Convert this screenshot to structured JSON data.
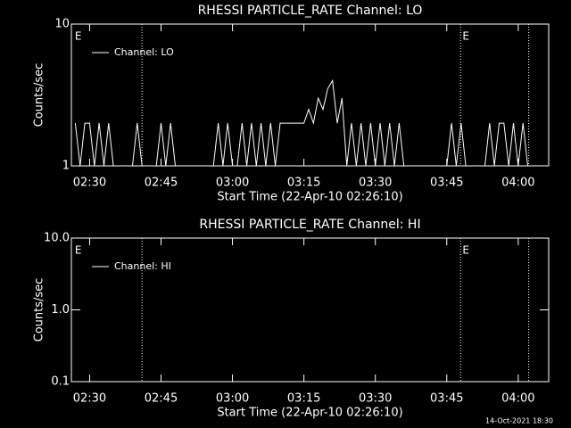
{
  "chart_data": [
    {
      "type": "line",
      "title": "RHESSI PARTICLE_RATE Channel: LO",
      "xlabel": "Start Time (22-Apr-10 02:26:10)",
      "ylabel": "Counts/sec",
      "ylog": true,
      "ylim": [
        1,
        10
      ],
      "yticks": [
        1,
        10
      ],
      "xlim": [
        146.17,
        246.4
      ],
      "xticks": [
        {
          "value": 150,
          "label": "02:30"
        },
        {
          "value": 165,
          "label": "02:45"
        },
        {
          "value": 180,
          "label": "03:00"
        },
        {
          "value": 195,
          "label": "03:15"
        },
        {
          "value": 210,
          "label": "03:30"
        },
        {
          "value": 225,
          "label": "03:45"
        },
        {
          "value": 240,
          "label": "04:00"
        }
      ],
      "vlines": [
        161,
        227.9,
        242.2
      ],
      "event_labels": [
        {
          "x": 146.9,
          "label": "E"
        },
        {
          "x": 228.3,
          "label": "E"
        }
      ],
      "x": [
        147,
        148,
        149,
        150,
        151,
        152,
        153,
        154,
        155,
        156,
        157,
        158,
        159,
        160,
        161,
        162,
        163,
        164,
        165,
        166,
        167,
        168,
        169,
        170,
        171,
        172,
        173,
        174,
        175,
        176,
        177,
        178,
        179,
        180,
        181,
        182,
        183,
        184,
        185,
        186,
        187,
        188,
        189,
        190,
        191,
        192,
        193,
        194,
        195,
        196,
        197,
        198,
        199,
        200,
        201,
        202,
        203,
        204,
        205,
        206,
        207,
        208,
        209,
        210,
        211,
        212,
        213,
        214,
        215,
        216,
        217,
        218,
        219,
        220,
        221,
        222,
        223,
        224,
        225,
        226,
        227,
        228,
        229,
        230,
        231,
        232,
        233,
        234,
        235,
        236,
        237,
        238,
        239,
        240,
        241,
        242
      ],
      "series": [
        {
          "name": "Channel: LO",
          "color": "#ffffff",
          "values": [
            2,
            1,
            2,
            2,
            1,
            2,
            1,
            2,
            1,
            1,
            1,
            1,
            1,
            2,
            1,
            1,
            1,
            1,
            2,
            1,
            2,
            1,
            1,
            1,
            1,
            1,
            1,
            1,
            1,
            1,
            2,
            1,
            2,
            1,
            1,
            2,
            1,
            2,
            1,
            2,
            1,
            2,
            1,
            2,
            2,
            2,
            2,
            2,
            2,
            2.5,
            2,
            3,
            2.5,
            3.5,
            4,
            2,
            3,
            1,
            2,
            1,
            2,
            1,
            2,
            1,
            2,
            1,
            2,
            1,
            2,
            1,
            1,
            1,
            1,
            1,
            1,
            1,
            1,
            1,
            1,
            2,
            1,
            2,
            1,
            1,
            1,
            1,
            1,
            2,
            1,
            2,
            2,
            1,
            2,
            1,
            2,
            1
          ]
        }
      ]
    },
    {
      "type": "line",
      "title": "RHESSI PARTICLE_RATE Channel: HI",
      "xlabel": "Start Time (22-Apr-10 02:26:10)",
      "ylabel": "Counts/sec",
      "ylog": true,
      "ylim": [
        0.1,
        10
      ],
      "yticks": [
        0.1,
        {
          "value": 1,
          "label": "1.0"
        },
        {
          "value": 10,
          "label": "10.0"
        }
      ],
      "xlim": [
        146.17,
        246.4
      ],
      "xticks": [
        {
          "value": 150,
          "label": "02:30"
        },
        {
          "value": 165,
          "label": "02:45"
        },
        {
          "value": 180,
          "label": "03:00"
        },
        {
          "value": 195,
          "label": "03:15"
        },
        {
          "value": 210,
          "label": "03:30"
        },
        {
          "value": 225,
          "label": "03:45"
        },
        {
          "value": 240,
          "label": "04:00"
        }
      ],
      "vlines": [
        161,
        227.9,
        242.2
      ],
      "event_labels": [
        {
          "x": 146.9,
          "label": "E"
        },
        {
          "x": 228.3,
          "label": "E"
        }
      ],
      "x": [],
      "series": [
        {
          "name": "Channel: HI",
          "color": "#ffffff",
          "values": []
        }
      ]
    }
  ],
  "footer": "14-Oct-2021 18:30"
}
